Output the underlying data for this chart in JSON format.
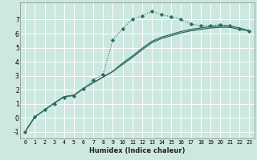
{
  "xlabel": "Humidex (Indice chaleur)",
  "ylabel": "",
  "bg_color": "#cce8e0",
  "grid_color": "#ffffff",
  "line_color": "#2d6b5e",
  "xlim": [
    -0.5,
    23.5
  ],
  "ylim": [
    -1.5,
    8.2
  ],
  "xticks": [
    0,
    1,
    2,
    3,
    4,
    5,
    6,
    7,
    8,
    9,
    10,
    11,
    12,
    13,
    14,
    15,
    16,
    17,
    18,
    19,
    20,
    21,
    22,
    23
  ],
  "yticks": [
    -1,
    0,
    1,
    2,
    3,
    4,
    5,
    6,
    7
  ],
  "curve1_x": [
    0,
    1,
    2,
    3,
    4,
    5,
    6,
    7,
    8,
    9,
    10,
    11,
    12,
    13,
    14,
    15,
    16,
    17,
    18,
    19,
    20,
    21,
    22,
    23
  ],
  "curve1_y": [
    -1.0,
    0.05,
    0.55,
    1.0,
    1.45,
    1.55,
    2.05,
    2.7,
    3.1,
    5.55,
    6.35,
    7.05,
    7.25,
    7.6,
    7.35,
    7.2,
    7.0,
    6.7,
    6.55,
    6.55,
    6.65,
    6.55,
    6.35,
    6.2
  ],
  "curve2_x": [
    0,
    1,
    2,
    3,
    4,
    5,
    6,
    7,
    8,
    9,
    10,
    11,
    12,
    13,
    14,
    15,
    16,
    17,
    18,
    19,
    20,
    21,
    22,
    23
  ],
  "curve2_y": [
    -1.0,
    0.05,
    0.55,
    1.05,
    1.5,
    1.6,
    2.1,
    2.5,
    2.9,
    3.3,
    3.8,
    4.3,
    4.85,
    5.35,
    5.65,
    5.85,
    6.05,
    6.2,
    6.3,
    6.4,
    6.45,
    6.45,
    6.3,
    6.2
  ],
  "curve3_x": [
    0,
    1,
    2,
    3,
    4,
    5,
    6,
    7,
    8,
    9,
    10,
    11,
    12,
    13,
    14,
    15,
    16,
    17,
    18,
    19,
    20,
    21,
    22,
    23
  ],
  "curve3_y": [
    -1.0,
    0.05,
    0.55,
    1.05,
    1.5,
    1.6,
    2.1,
    2.5,
    2.9,
    3.3,
    3.9,
    4.4,
    4.95,
    5.45,
    5.75,
    5.95,
    6.15,
    6.3,
    6.4,
    6.5,
    6.55,
    6.55,
    6.4,
    6.2
  ]
}
